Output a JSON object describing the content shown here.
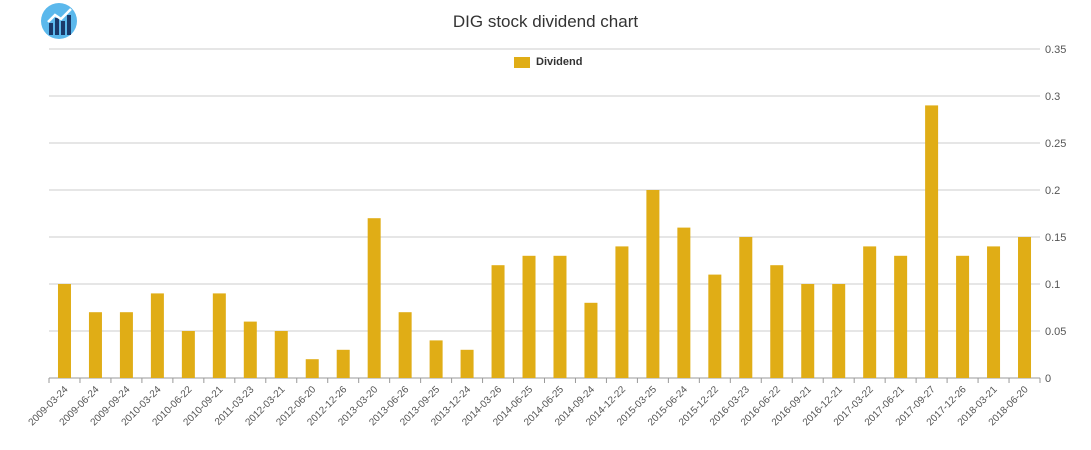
{
  "chart_data": {
    "type": "bar",
    "title": "DIG stock dividend chart",
    "legend": "top-center",
    "grid": true,
    "ylim": [
      0,
      0.35
    ],
    "yticks": [
      "0",
      "0.05",
      "0.1",
      "0.15",
      "0.2",
      "0.25",
      "0.3",
      "0.35"
    ],
    "categories": [
      "2009-03-24",
      "2009-06-24",
      "2009-09-24",
      "2010-03-24",
      "2010-06-22",
      "2010-09-21",
      "2011-03-23",
      "2012-03-21",
      "2012-06-20",
      "2012-12-26",
      "2013-03-20",
      "2013-06-26",
      "2013-09-25",
      "2013-12-24",
      "2014-03-26",
      "2014-06-25",
      "2014-06-25",
      "2014-09-24",
      "2014-12-22",
      "2015-03-25",
      "2015-06-24",
      "2015-12-22",
      "2016-03-23",
      "2016-06-22",
      "2016-09-21",
      "2016-12-21",
      "2017-03-22",
      "2017-06-21",
      "2017-09-27",
      "2017-12-26",
      "2018-03-21",
      "2018-06-20"
    ],
    "series": [
      {
        "name": "Dividend",
        "color": "#e0ad16",
        "values": [
          0.1,
          0.07,
          0.07,
          0.09,
          0.05,
          0.09,
          0.06,
          0.05,
          0.02,
          0.03,
          0.17,
          0.07,
          0.04,
          0.03,
          0.12,
          0.13,
          0.13,
          0.08,
          0.14,
          0.2,
          0.16,
          0.11,
          0.15,
          0.12,
          0.1,
          0.1,
          0.14,
          0.13,
          0.29,
          0.13,
          0.14,
          0.15
        ]
      }
    ]
  },
  "logo_icon": "bar-chart-logo-icon"
}
